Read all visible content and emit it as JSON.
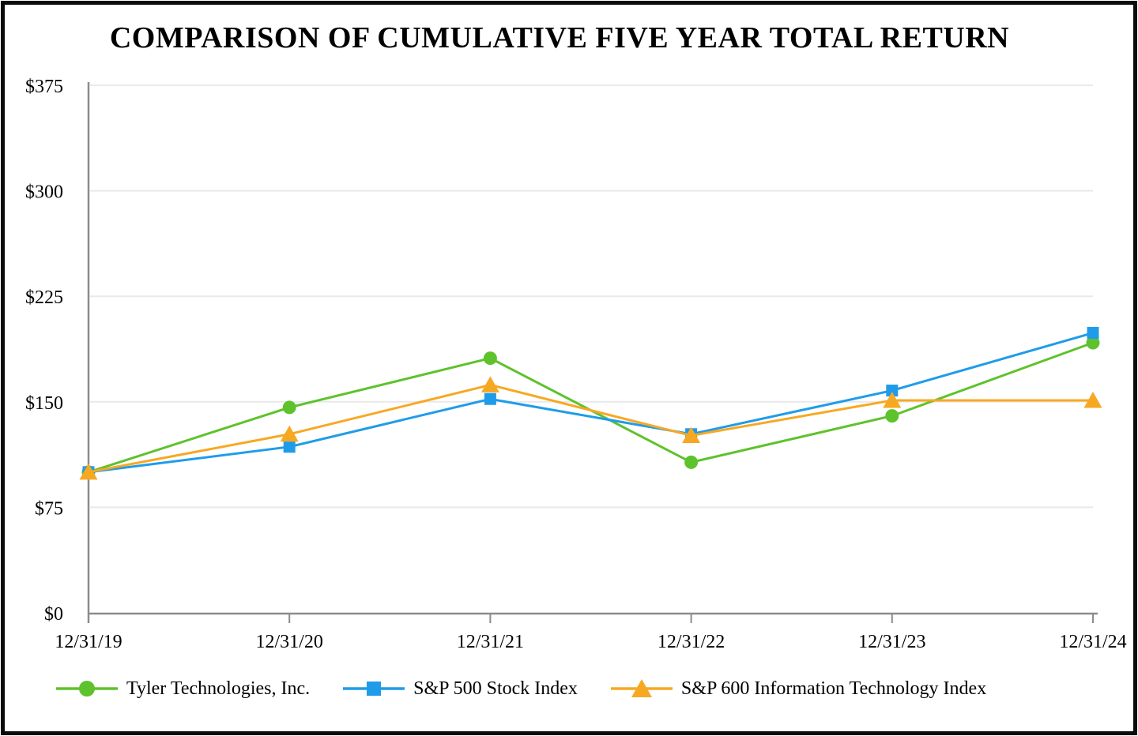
{
  "chart_data": {
    "type": "line",
    "title": "COMPARISON OF CUMULATIVE FIVE YEAR TOTAL RETURN",
    "x_labels": [
      "12/31/19",
      "12/31/20",
      "12/31/21",
      "12/31/22",
      "12/31/23",
      "12/31/24"
    ],
    "y_tick_labels": [
      "$0",
      "$75",
      "$150",
      "$225",
      "$300",
      "$375"
    ],
    "ylim": [
      0,
      375
    ],
    "y_tick_step": 75,
    "grid": "horizontal-on",
    "legend_position": "bottom",
    "series": [
      {
        "name": "Tyler Technologies, Inc.",
        "marker": "circle",
        "color": "#5EC22C",
        "values": [
          100,
          146,
          181,
          107,
          140,
          192
        ]
      },
      {
        "name": "S&P 500 Stock Index",
        "marker": "square",
        "color": "#1F9CE9",
        "values": [
          100,
          118,
          152,
          127,
          158,
          199
        ]
      },
      {
        "name": "S&P 600 Information Technology Index",
        "marker": "triangle",
        "color": "#F7A823",
        "values": [
          100,
          127,
          162,
          126,
          151,
          151
        ]
      }
    ],
    "axis_color": "#8c8c8c",
    "gridline_color": "#e9e9e9",
    "text_color": "#000000"
  }
}
